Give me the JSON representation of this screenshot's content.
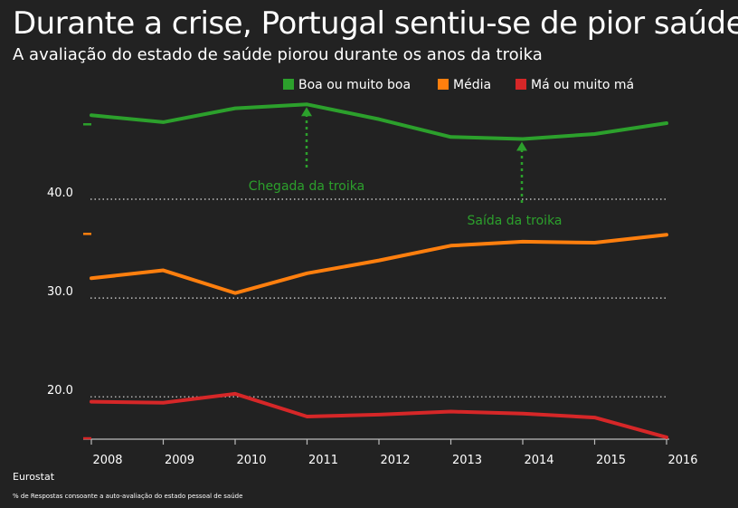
{
  "header": {
    "title": "Durante a crise, Portugal sentiu-se de pior saúde",
    "subtitle": "A avaliação do estado de saúde piorou durante os anos da troika"
  },
  "footer": {
    "source": "Eurostat",
    "note": "% de Respostas consoante a auto-avaliação do estado pessoal de saúde"
  },
  "chart_data": {
    "type": "line",
    "title": "Durante a crise, Portugal sentiu-se de pior saúde",
    "subtitle": "A avaliação do estado de saúde piorou durante os anos da troika",
    "x": [
      2008,
      2009,
      2010,
      2011,
      2012,
      2013,
      2014,
      2015,
      2016
    ],
    "xticks": [
      "2008",
      "2009",
      "2010",
      "2011",
      "2012",
      "2013",
      "2014",
      "2015",
      "2016"
    ],
    "yticks": [
      {
        "value": 20,
        "label": "20.0"
      },
      {
        "value": 30,
        "label": "30.0"
      },
      {
        "value": 40,
        "label": "40.0"
      }
    ],
    "ylim": [
      15.8,
      51
    ],
    "grid": "horizontal dotted",
    "legend": "top",
    "series": [
      {
        "name": "Boa ou muito boa",
        "color": "#2ca02c",
        "values": [
          48.5,
          47.8,
          49.2,
          49.6,
          48.1,
          46.3,
          46.1,
          46.6,
          47.7
        ]
      },
      {
        "name": "Média",
        "color": "#ff7f0e",
        "values": [
          32.0,
          32.8,
          30.5,
          32.5,
          33.8,
          35.3,
          35.7,
          35.6,
          36.4
        ]
      },
      {
        "name": "Má ou muito má",
        "color": "#d62728",
        "values": [
          19.5,
          19.4,
          20.3,
          18.0,
          18.2,
          18.5,
          18.3,
          17.9,
          15.9
        ]
      }
    ],
    "annotations": [
      {
        "text": "Chegada da troika",
        "x": 2011,
        "y": 44.5,
        "arrow_to": 49.6,
        "color": "#2ca02c"
      },
      {
        "text": "Saída da troika",
        "x": 2014,
        "y": 38.6,
        "arrow_to": 46.1,
        "color": "#2ca02c"
      }
    ]
  }
}
